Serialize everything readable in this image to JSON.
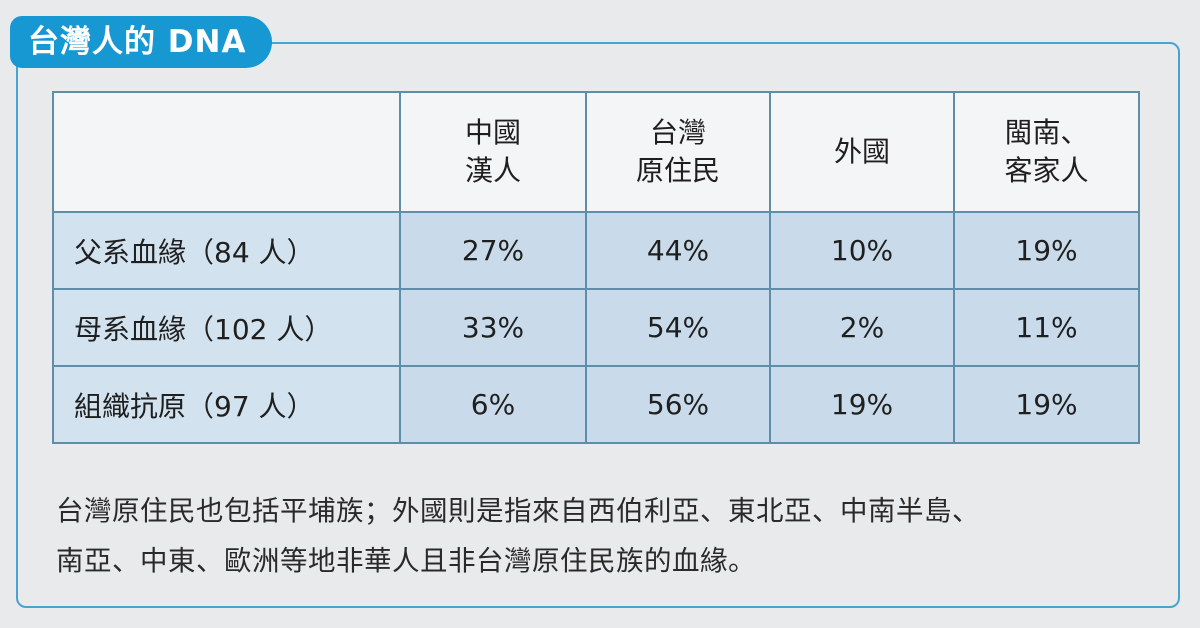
{
  "title": "台灣人的 DNA",
  "table": {
    "headers": [
      "",
      [
        "中國",
        "漢人"
      ],
      [
        "台灣",
        "原住民"
      ],
      [
        "外國"
      ],
      [
        "閩南、",
        "客家人"
      ]
    ],
    "rows": [
      {
        "label": "父系血緣（84 人）",
        "values": [
          "27%",
          "44%",
          "10%",
          "19%"
        ]
      },
      {
        "label": "母系血緣（102 人）",
        "values": [
          "33%",
          "54%",
          "2%",
          "11%"
        ]
      },
      {
        "label": "組織抗原（97 人）",
        "values": [
          "6%",
          "56%",
          "19%",
          "19%"
        ]
      }
    ]
  },
  "note": {
    "line1": "台灣原住民也包括平埔族；外國則是指來自西伯利亞、東北亞、中南半島、",
    "line2": "南亞、中東、歐洲等地非華人且非台灣原住民族的血緣。"
  }
}
